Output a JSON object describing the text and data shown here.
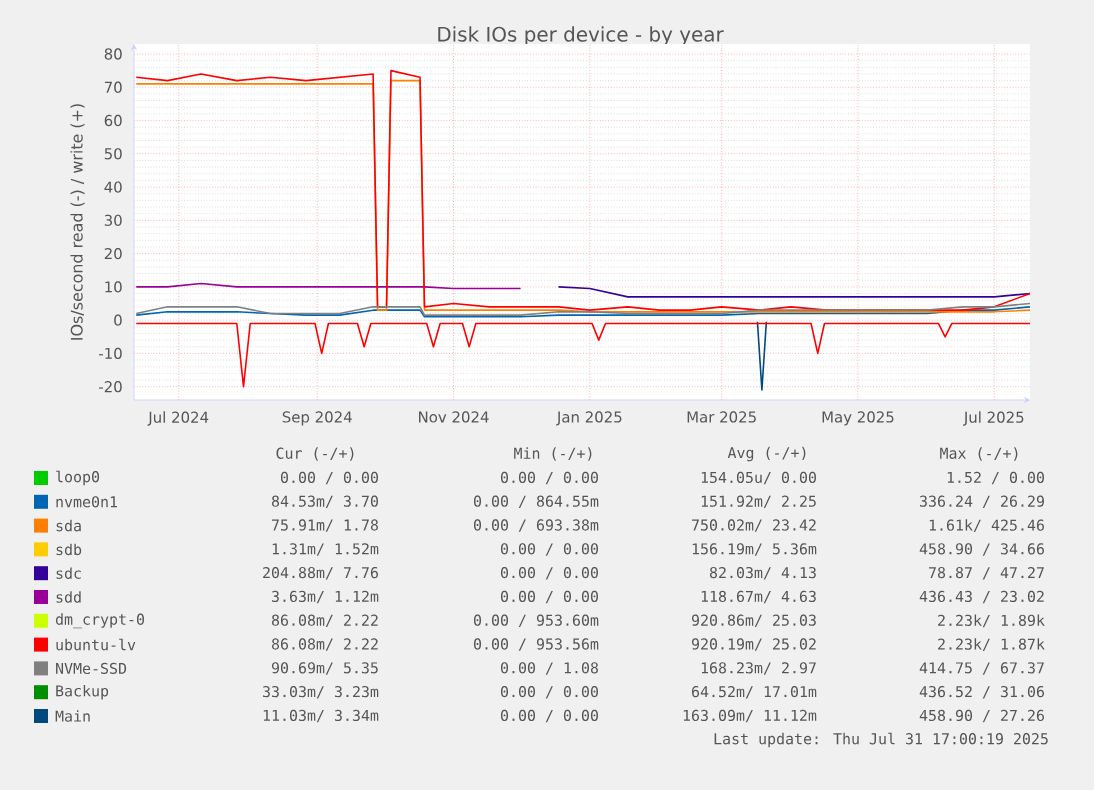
{
  "chart_data": {
    "type": "line",
    "title": "Disk IOs per device - by year",
    "ylabel": "IOs/second read (-) / write (+)",
    "x": [
      "2024-06-26",
      "2024-07-10",
      "2024-07-25",
      "2024-08-10",
      "2024-08-25",
      "2024-09-10",
      "2024-09-25",
      "2024-10-10",
      "2024-10-12",
      "2024-10-16",
      "2024-10-18",
      "2024-10-31",
      "2024-11-02",
      "2024-11-15",
      "2024-12-01",
      "2024-12-15",
      "2025-01-01",
      "2025-01-15",
      "2025-02-01",
      "2025-02-15",
      "2025-03-01",
      "2025-03-15",
      "2025-04-01",
      "2025-04-15",
      "2025-05-01",
      "2025-05-15",
      "2025-06-01",
      "2025-06-15",
      "2025-07-01",
      "2025-07-15",
      "2025-07-31"
    ],
    "xlim": [
      "2024-06-25",
      "2025-07-31"
    ],
    "xticks": [
      {
        "value": "2024-07-15",
        "label": "Jul 2024"
      },
      {
        "value": "2024-09-15",
        "label": "Sep 2024"
      },
      {
        "value": "2024-11-15",
        "label": "Nov 2024"
      },
      {
        "value": "2025-01-15",
        "label": "Jan 2025"
      },
      {
        "value": "2025-03-15",
        "label": "Mar 2025"
      },
      {
        "value": "2025-05-15",
        "label": "May 2025"
      },
      {
        "value": "2025-07-15",
        "label": "Jul 2025"
      }
    ],
    "ylim": [
      -24,
      83
    ],
    "yticks": [
      -20,
      -10,
      0,
      10,
      20,
      30,
      40,
      50,
      60,
      70,
      80
    ],
    "grid": true,
    "legend": "bottom",
    "series": [
      {
        "name": "loop0",
        "color": "#00cc00",
        "values": [
          null,
          null,
          null,
          null,
          null,
          null,
          null,
          null,
          null,
          null,
          null,
          null,
          null,
          null,
          null,
          null,
          null,
          null,
          null,
          null,
          null,
          null,
          null,
          null,
          null,
          null,
          null,
          null,
          null,
          null,
          null
        ]
      },
      {
        "name": "nvme0n1",
        "color": "#0066b3",
        "values": [
          1.5,
          2.5,
          2.5,
          2.5,
          2,
          1.5,
          1.5,
          3,
          3,
          3,
          3,
          3,
          1,
          1,
          1,
          1,
          1.5,
          1.5,
          1.5,
          1.5,
          1.5,
          1.5,
          2,
          2,
          2,
          2,
          2,
          2,
          3,
          3,
          4
        ]
      },
      {
        "name": "sda",
        "color": "#ff8000",
        "values": [
          71,
          71,
          71,
          71,
          71,
          71,
          71,
          71,
          3,
          3,
          72,
          72,
          3,
          3,
          3,
          3,
          3,
          2.5,
          2.5,
          2.5,
          2.5,
          2.5,
          2.5,
          2.5,
          2.5,
          2.5,
          2.5,
          2.5,
          2.5,
          2.5,
          3
        ]
      },
      {
        "name": "sdb",
        "color": "#ffcc00",
        "values": [
          null,
          null,
          null,
          null,
          null,
          null,
          null,
          null,
          null,
          null,
          null,
          null,
          null,
          null,
          null,
          null,
          null,
          null,
          null,
          null,
          null,
          null,
          null,
          null,
          null,
          null,
          null,
          null,
          null,
          null,
          null
        ]
      },
      {
        "name": "sdc",
        "color": "#330099",
        "values": [
          null,
          null,
          null,
          null,
          null,
          null,
          null,
          null,
          null,
          null,
          null,
          null,
          null,
          null,
          null,
          null,
          10,
          9.5,
          7,
          7,
          7,
          7,
          7,
          7,
          7,
          7,
          7,
          7,
          7,
          7,
          8
        ]
      },
      {
        "name": "sdd",
        "color": "#990099",
        "values": [
          10,
          10,
          11,
          10,
          10,
          10,
          10,
          10,
          10,
          10,
          10,
          10,
          10,
          9.5,
          9.5,
          9.5,
          null,
          null,
          null,
          null,
          null,
          null,
          null,
          null,
          null,
          null,
          null,
          null,
          null,
          null,
          null
        ]
      },
      {
        "name": "dm_crypt-0",
        "color": "#ccff00",
        "values": [
          null,
          null,
          null,
          null,
          null,
          null,
          null,
          null,
          null,
          null,
          null,
          null,
          null,
          null,
          null,
          null,
          null,
          null,
          null,
          null,
          null,
          null,
          null,
          null,
          null,
          null,
          null,
          null,
          null,
          null,
          null
        ]
      },
      {
        "name": "ubuntu-lv",
        "color": "#ff0000",
        "values": [
          73,
          72,
          74,
          72,
          73,
          72,
          73,
          74,
          4,
          4,
          75,
          73,
          4,
          5,
          4,
          4,
          4,
          3,
          4,
          3,
          3,
          4,
          3,
          4,
          3,
          3,
          3,
          3,
          3,
          4,
          8
        ]
      },
      {
        "name": "NVMe-SSD",
        "color": "#808080",
        "values": [
          2,
          4,
          4,
          4,
          2,
          2,
          2,
          4,
          4,
          4,
          4,
          4,
          1.5,
          1.5,
          1.5,
          1.5,
          2.5,
          2.5,
          2,
          2,
          2,
          2,
          3,
          3,
          3,
          3,
          3,
          3,
          4,
          4,
          5
        ]
      },
      {
        "name": "Backup",
        "color": "#008f00",
        "values": [
          null,
          null,
          null,
          null,
          null,
          null,
          null,
          null,
          null,
          null,
          null,
          null,
          null,
          null,
          null,
          null,
          null,
          null,
          null,
          null,
          null,
          null,
          null,
          null,
          null,
          null,
          null,
          null,
          null,
          null,
          null
        ]
      },
      {
        "name": "Main",
        "color": "#00487d",
        "x": [
          "2025-03-31",
          "2025-04-02",
          "2025-04-04"
        ],
        "values": [
          -0.5,
          -21,
          -0.5
        ]
      },
      {
        "color": "#ff0000",
        "x": [
          "2024-06-26",
          "2024-08-10",
          "2024-08-13",
          "2024-08-16",
          "2024-09-14",
          "2024-09-17",
          "2024-09-20",
          "2024-10-03",
          "2024-10-06",
          "2024-10-09",
          "2024-11-03",
          "2024-11-06",
          "2024-11-09",
          "2024-11-19",
          "2024-11-22",
          "2024-11-25",
          "2025-01-16",
          "2025-01-19",
          "2025-01-22",
          "2025-04-24",
          "2025-04-27",
          "2025-04-30",
          "2025-06-20",
          "2025-06-23",
          "2025-06-26",
          "2025-07-31"
        ],
        "values": [
          -1,
          -1,
          -20,
          -1,
          -1,
          -10,
          -1,
          -1,
          -8,
          -1,
          -1,
          -8,
          -1,
          -1,
          -8,
          -1,
          -1,
          -6,
          -1,
          -1,
          -10,
          -1,
          -1,
          -5,
          -1,
          -1
        ]
      }
    ],
    "annotations": [
      "Cur (-/+)",
      "Min (-/+)",
      "Avg (-/+)",
      "Max (-/+)",
      "0.00 / 0.00",
      "0.00 / 0.00",
      "154.05u/ 0.00",
      "1.52 / 0.00",
      "84.53m/ 3.70",
      "0.00 / 864.55m",
      "151.92m/ 2.25",
      "336.24 / 26.29",
      "75.91m/ 1.78",
      "0.00 / 693.38m",
      "750.02m/ 23.42",
      "1.61k/ 425.46",
      "1.31m/ 1.52m",
      "0.00 / 0.00",
      "156.19m/ 5.36m",
      "458.90 / 34.66",
      "204.88m/ 7.76",
      "0.00 / 0.00",
      "82.03m/ 4.13",
      "78.87 / 47.27",
      "3.63m/ 1.12m",
      "0.00 / 0.00",
      "118.67m/ 4.63",
      "436.43 / 23.02",
      "86.08m/ 2.22",
      "0.00 / 953.60m",
      "920.86m/ 25.03",
      "2.23k/ 1.89k",
      "86.08m/ 2.22",
      "0.00 / 953.56m",
      "920.19m/ 25.02",
      "2.23k/ 1.87k",
      "90.69m/ 5.35",
      "0.00 / 1.08",
      "168.23m/ 2.97",
      "414.75 / 67.37",
      "33.03m/ 3.23m",
      "0.00 / 0.00",
      "64.52m/ 17.01m",
      "436.52 / 31.06",
      "11.03m/ 3.34m",
      "0.00 / 0.00",
      "163.09m/ 11.12m",
      "458.90 / 27.26",
      "Last update: Thu Jul 31 17:00:19 2025"
    ]
  }
}
